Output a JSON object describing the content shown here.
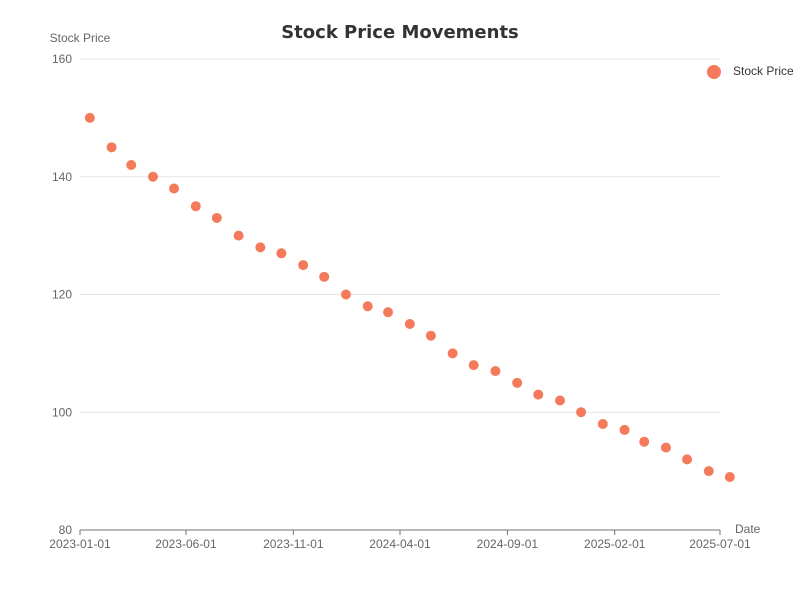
{
  "chart_data": {
    "type": "scatter",
    "title": "Stock Price Movements",
    "xlabel": "Date",
    "ylabel": "Stock Price",
    "ylim": [
      80,
      160
    ],
    "yticks": [
      80,
      100,
      120,
      140,
      160
    ],
    "xlim": [
      "2023-01-01",
      "2025-07-01"
    ],
    "xticks": [
      "2023-01-01",
      "2023-06-01",
      "2023-11-01",
      "2024-04-01",
      "2024-09-01",
      "2025-02-01",
      "2025-07-01"
    ],
    "grid": true,
    "legend_position": "top-right",
    "colors": {
      "series": "#f47a5b"
    },
    "series": [
      {
        "name": "Stock Price",
        "x": [
          "2023-01-15",
          "2023-02-15",
          "2023-03-15",
          "2023-04-15",
          "2023-05-15",
          "2023-06-15",
          "2023-07-15",
          "2023-08-15",
          "2023-09-15",
          "2023-10-15",
          "2023-11-15",
          "2023-12-15",
          "2024-01-15",
          "2024-02-15",
          "2024-03-15",
          "2024-04-15",
          "2024-05-15",
          "2024-06-15",
          "2024-07-15",
          "2024-08-15",
          "2024-09-15",
          "2024-10-15",
          "2024-11-15",
          "2024-12-15",
          "2025-01-15",
          "2025-02-15",
          "2025-03-15",
          "2025-04-15",
          "2025-05-15",
          "2025-06-15",
          "2025-07-15"
        ],
        "values": [
          150,
          145,
          142,
          140,
          138,
          135,
          133,
          130,
          128,
          127,
          125,
          123,
          120,
          118,
          117,
          115,
          113,
          110,
          108,
          107,
          105,
          103,
          102,
          100,
          98,
          97,
          95,
          94,
          92,
          90,
          89
        ]
      }
    ]
  }
}
